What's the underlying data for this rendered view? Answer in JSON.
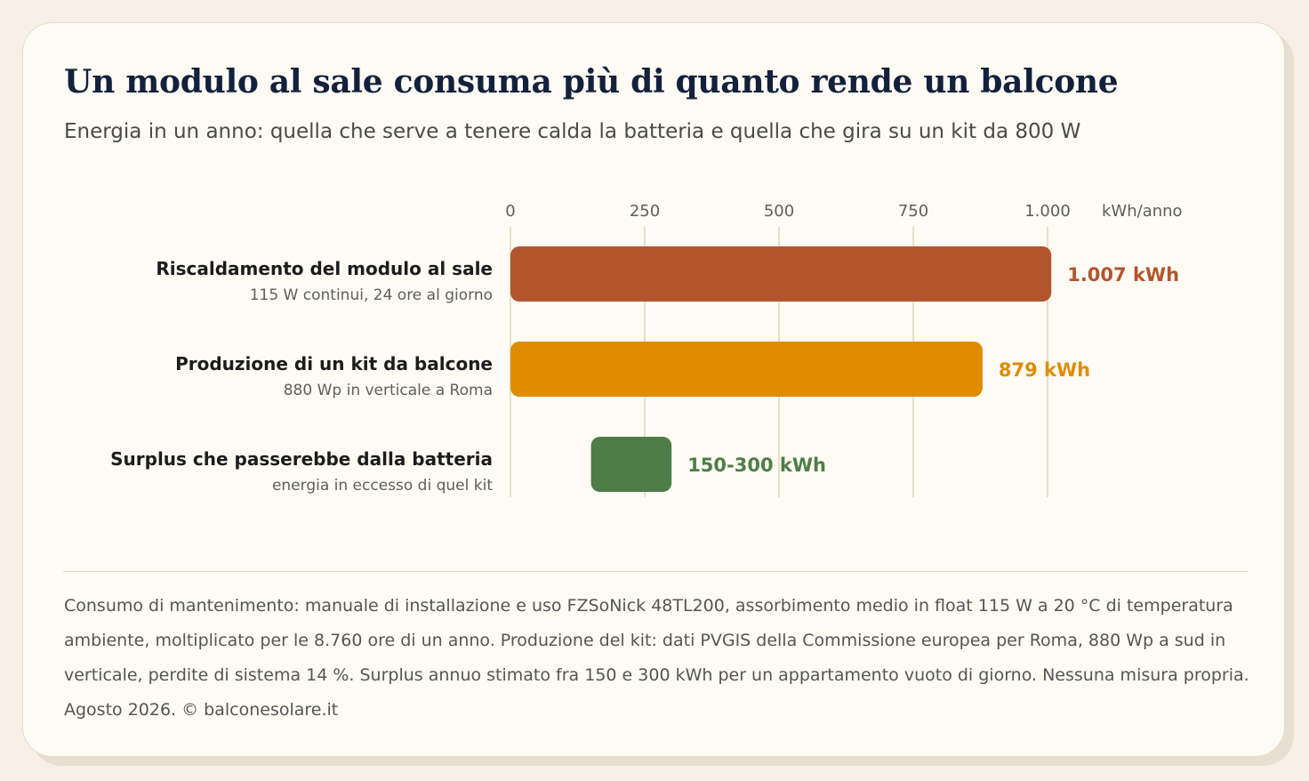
{
  "header": {
    "title": "Un modulo al sale consuma più di quanto rende un balcone",
    "subtitle": "Energia in un anno: quella che serve a tenere calda la batteria e quella che gira su un kit da 800 W"
  },
  "chart_data": {
    "type": "bar",
    "orientation": "horizontal",
    "xlim": [
      0,
      1000
    ],
    "unit_label": "kWh/anno",
    "ticks": [
      {
        "value": 0,
        "label": "0"
      },
      {
        "value": 250,
        "label": "250"
      },
      {
        "value": 500,
        "label": "500"
      },
      {
        "value": 750,
        "label": "750"
      },
      {
        "value": 1000,
        "label": "1.000"
      }
    ],
    "grid": true,
    "bars": [
      {
        "label": "Riscaldamento del modulo al sale",
        "sublabel": "115 W continui, 24 ore al giorno",
        "start": 0,
        "value": 1007,
        "value_label": "1.007 kWh",
        "color": "#b2552e"
      },
      {
        "label": "Produzione di un kit da balcone",
        "sublabel": "880 Wp in verticale a Roma",
        "start": 0,
        "value": 879,
        "value_label": "879 kWh",
        "color": "#df8c00"
      },
      {
        "label": "Surplus che passerebbe dalla batteria",
        "sublabel": "energia in eccesso di quel kit",
        "start": 150,
        "value": 300,
        "value_label": "150-300 kWh",
        "color": "#4f7d48"
      }
    ]
  },
  "footer": {
    "note": "Consumo di mantenimento: manuale di installazione e uso FZSoNick 48TL200, assorbimento medio in float 115 W a 20 °C di temperatura ambiente, moltiplicato per le 8.760 ore di un anno. Produzione del kit: dati PVGIS della Commissione europea per Roma, 880 Wp a sud in verticale, perdite di sistema 14 %. Surplus annuo stimato fra 150 e 300 kWh per un appartamento vuoto di giorno. Nessuna misura propria. Agosto 2026. © balconesolare.it"
  }
}
